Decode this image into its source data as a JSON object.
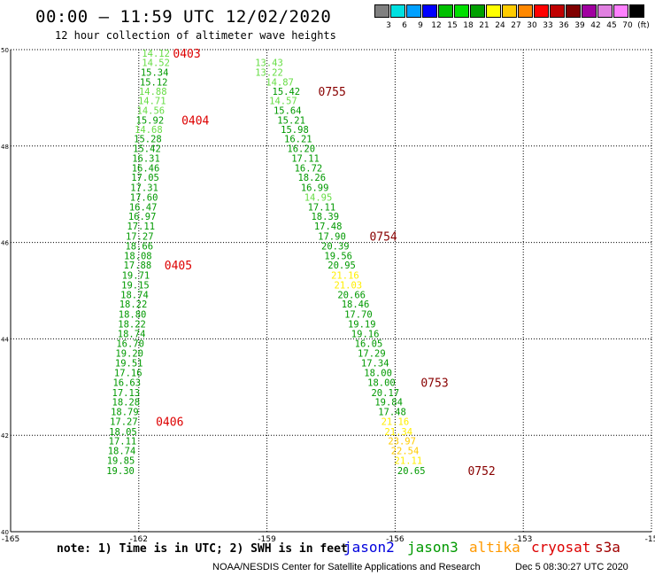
{
  "header": {
    "title": "00:00 — 11:59 UTC 12/02/2020",
    "subtitle": "12 hour collection of altimeter wave heights"
  },
  "legend": {
    "colors": [
      "#808080",
      "#00e0e0",
      "#00a0ff",
      "#0000ff",
      "#00c000",
      "#00e000",
      "#00a000",
      "#ffff00",
      "#ffcc00",
      "#ff8800",
      "#ff0000",
      "#c00000",
      "#800000",
      "#a000a0",
      "#e080e0",
      "#ff80ff",
      "#000000"
    ],
    "labels": [
      "3",
      "6",
      "9",
      "12",
      "15",
      "18",
      "21",
      "24",
      "27",
      "30",
      "33",
      "36",
      "39",
      "42",
      "45",
      "70",
      "(ft)"
    ]
  },
  "footer": {
    "note": "note: 1) Time is in UTC; 2) SWH is in feet",
    "satellites": [
      {
        "name": "jason2",
        "color": "#0000dd"
      },
      {
        "name": "jason3",
        "color": "#009900"
      },
      {
        "name": "altika",
        "color": "#ff9900"
      },
      {
        "name": "cryosat",
        "color": "#dd0000"
      },
      {
        "name": "s3a",
        "color": "#a00000"
      }
    ],
    "credit": "NOAA/NESDIS Center for Satellite Applications and Research",
    "timestamp": "Dec  5 08:30:27 UTC 2020"
  },
  "chart_data": {
    "type": "scatter",
    "xlim": [
      -165,
      -150
    ],
    "ylim": [
      40,
      50
    ],
    "xticks": [
      "-165",
      "-162",
      "-159",
      "-156",
      "-153",
      "-15"
    ],
    "yticks": [
      "40",
      "42",
      "44",
      "46",
      "48",
      "50"
    ],
    "grid": true,
    "tracks": [
      {
        "name": "track-west",
        "points": [
          {
            "lon": -161.6,
            "lat": 49.93,
            "v": "14.12",
            "c": "#66dd44"
          },
          {
            "lon": -161.6,
            "lat": 49.73,
            "v": "14.52",
            "c": "#66dd44"
          },
          {
            "lon": -161.63,
            "lat": 49.53,
            "v": "15.34",
            "c": "#009900"
          },
          {
            "lon": -161.65,
            "lat": 49.33,
            "v": "15.12",
            "c": "#009900"
          },
          {
            "lon": -161.67,
            "lat": 49.14,
            "v": "14.88",
            "c": "#66dd44"
          },
          {
            "lon": -161.69,
            "lat": 48.94,
            "v": "14.71",
            "c": "#66dd44"
          },
          {
            "lon": -161.72,
            "lat": 48.74,
            "v": "14.56",
            "c": "#66dd44"
          },
          {
            "lon": -161.74,
            "lat": 48.54,
            "v": "15.92",
            "c": "#009900"
          },
          {
            "lon": -161.77,
            "lat": 48.35,
            "v": "14.68",
            "c": "#66dd44"
          },
          {
            "lon": -161.79,
            "lat": 48.15,
            "v": "15.28",
            "c": "#009900"
          },
          {
            "lon": -161.81,
            "lat": 47.95,
            "v": "15.42",
            "c": "#009900"
          },
          {
            "lon": -161.83,
            "lat": 47.75,
            "v": "16.31",
            "c": "#009900"
          },
          {
            "lon": -161.84,
            "lat": 47.55,
            "v": "16.46",
            "c": "#009900"
          },
          {
            "lon": -161.85,
            "lat": 47.35,
            "v": "17.05",
            "c": "#009900"
          },
          {
            "lon": -161.87,
            "lat": 47.14,
            "v": "17.31",
            "c": "#009900"
          },
          {
            "lon": -161.88,
            "lat": 46.94,
            "v": "17.60",
            "c": "#009900"
          },
          {
            "lon": -161.9,
            "lat": 46.74,
            "v": "16.47",
            "c": "#009900"
          },
          {
            "lon": -161.92,
            "lat": 46.54,
            "v": "16.97",
            "c": "#009900"
          },
          {
            "lon": -161.95,
            "lat": 46.34,
            "v": "17.11",
            "c": "#009900"
          },
          {
            "lon": -161.98,
            "lat": 46.13,
            "v": "17.27",
            "c": "#009900"
          },
          {
            "lon": -161.99,
            "lat": 45.93,
            "v": "18.66",
            "c": "#009900"
          },
          {
            "lon": -162.02,
            "lat": 45.73,
            "v": "18.08",
            "c": "#009900"
          },
          {
            "lon": -162.03,
            "lat": 45.53,
            "v": "17.88",
            "c": "#009900"
          },
          {
            "lon": -162.07,
            "lat": 45.32,
            "v": "19.71",
            "c": "#009900"
          },
          {
            "lon": -162.08,
            "lat": 45.12,
            "v": "19.15",
            "c": "#009900"
          },
          {
            "lon": -162.1,
            "lat": 44.92,
            "v": "18.74",
            "c": "#009900"
          },
          {
            "lon": -162.13,
            "lat": 44.72,
            "v": "18.22",
            "c": "#009900"
          },
          {
            "lon": -162.15,
            "lat": 44.51,
            "v": "18.80",
            "c": "#009900"
          },
          {
            "lon": -162.16,
            "lat": 44.31,
            "v": "18.22",
            "c": "#009900"
          },
          {
            "lon": -162.17,
            "lat": 44.11,
            "v": "18.74",
            "c": "#009900"
          },
          {
            "lon": -162.2,
            "lat": 43.91,
            "v": "16.70",
            "c": "#009900"
          },
          {
            "lon": -162.22,
            "lat": 43.7,
            "v": "19.20",
            "c": "#009900"
          },
          {
            "lon": -162.23,
            "lat": 43.5,
            "v": "19.51",
            "c": "#009900"
          },
          {
            "lon": -162.25,
            "lat": 43.3,
            "v": "17.16",
            "c": "#009900"
          },
          {
            "lon": -162.28,
            "lat": 43.1,
            "v": "16.63",
            "c": "#009900"
          },
          {
            "lon": -162.3,
            "lat": 42.89,
            "v": "17.13",
            "c": "#009900"
          },
          {
            "lon": -162.3,
            "lat": 42.69,
            "v": "18.28",
            "c": "#009900"
          },
          {
            "lon": -162.33,
            "lat": 42.49,
            "v": "18.79",
            "c": "#009900"
          },
          {
            "lon": -162.35,
            "lat": 42.29,
            "v": "17.27",
            "c": "#009900"
          },
          {
            "lon": -162.37,
            "lat": 42.08,
            "v": "18.05",
            "c": "#009900"
          },
          {
            "lon": -162.38,
            "lat": 41.88,
            "v": "17.11",
            "c": "#009900"
          },
          {
            "lon": -162.4,
            "lat": 41.68,
            "v": "18.74",
            "c": "#009900"
          },
          {
            "lon": -162.42,
            "lat": 41.48,
            "v": "19.85",
            "c": "#009900"
          },
          {
            "lon": -162.43,
            "lat": 41.27,
            "v": "19.30",
            "c": "#009900"
          }
        ]
      },
      {
        "name": "track-east",
        "points": [
          {
            "lon": -158.95,
            "lat": 49.73,
            "v": "13.43",
            "c": "#66dd44"
          },
          {
            "lon": -158.95,
            "lat": 49.53,
            "v": "13.22",
            "c": "#66dd44"
          },
          {
            "lon": -158.7,
            "lat": 49.33,
            "v": "14.87",
            "c": "#66dd44"
          },
          {
            "lon": -158.55,
            "lat": 49.14,
            "v": "15.42",
            "c": "#009900"
          },
          {
            "lon": -158.62,
            "lat": 48.94,
            "v": "14.57",
            "c": "#66dd44"
          },
          {
            "lon": -158.52,
            "lat": 48.74,
            "v": "15.64",
            "c": "#009900"
          },
          {
            "lon": -158.43,
            "lat": 48.54,
            "v": "15.21",
            "c": "#009900"
          },
          {
            "lon": -158.35,
            "lat": 48.35,
            "v": "15.98",
            "c": "#009900"
          },
          {
            "lon": -158.27,
            "lat": 48.15,
            "v": "16.21",
            "c": "#009900"
          },
          {
            "lon": -158.2,
            "lat": 47.95,
            "v": "16.20",
            "c": "#009900"
          },
          {
            "lon": -158.1,
            "lat": 47.75,
            "v": "17.11",
            "c": "#009900"
          },
          {
            "lon": -158.03,
            "lat": 47.55,
            "v": "16.72",
            "c": "#009900"
          },
          {
            "lon": -157.95,
            "lat": 47.35,
            "v": "18.26",
            "c": "#009900"
          },
          {
            "lon": -157.88,
            "lat": 47.14,
            "v": "16.99",
            "c": "#009900"
          },
          {
            "lon": -157.8,
            "lat": 46.94,
            "v": "14.95",
            "c": "#66dd44"
          },
          {
            "lon": -157.72,
            "lat": 46.74,
            "v": "17.11",
            "c": "#009900"
          },
          {
            "lon": -157.64,
            "lat": 46.54,
            "v": "18.39",
            "c": "#009900"
          },
          {
            "lon": -157.57,
            "lat": 46.34,
            "v": "17.48",
            "c": "#009900"
          },
          {
            "lon": -157.48,
            "lat": 46.13,
            "v": "17.90",
            "c": "#009900"
          },
          {
            "lon": -157.4,
            "lat": 45.93,
            "v": "20.39",
            "c": "#009900"
          },
          {
            "lon": -157.33,
            "lat": 45.73,
            "v": "19.56",
            "c": "#009900"
          },
          {
            "lon": -157.25,
            "lat": 45.53,
            "v": "20.95",
            "c": "#009900"
          },
          {
            "lon": -157.17,
            "lat": 45.32,
            "v": "21.16",
            "c": "#ffee00"
          },
          {
            "lon": -157.1,
            "lat": 45.12,
            "v": "21.03",
            "c": "#ffee00"
          },
          {
            "lon": -157.02,
            "lat": 44.92,
            "v": "20.66",
            "c": "#009900"
          },
          {
            "lon": -156.93,
            "lat": 44.72,
            "v": "18.46",
            "c": "#009900"
          },
          {
            "lon": -156.86,
            "lat": 44.51,
            "v": "17.70",
            "c": "#009900"
          },
          {
            "lon": -156.78,
            "lat": 44.31,
            "v": "19.19",
            "c": "#009900"
          },
          {
            "lon": -156.7,
            "lat": 44.11,
            "v": "19.16",
            "c": "#009900"
          },
          {
            "lon": -156.62,
            "lat": 43.91,
            "v": "16.05",
            "c": "#009900"
          },
          {
            "lon": -156.55,
            "lat": 43.7,
            "v": "17.29",
            "c": "#009900"
          },
          {
            "lon": -156.47,
            "lat": 43.5,
            "v": "17.34",
            "c": "#009900"
          },
          {
            "lon": -156.4,
            "lat": 43.3,
            "v": "18.00",
            "c": "#009900"
          },
          {
            "lon": -156.32,
            "lat": 43.1,
            "v": "18.00",
            "c": "#009900"
          },
          {
            "lon": -156.23,
            "lat": 42.89,
            "v": "20.17",
            "c": "#009900"
          },
          {
            "lon": -156.15,
            "lat": 42.69,
            "v": "19.84",
            "c": "#009900"
          },
          {
            "lon": -156.07,
            "lat": 42.49,
            "v": "17.48",
            "c": "#009900"
          },
          {
            "lon": -156.0,
            "lat": 42.29,
            "v": "21.16",
            "c": "#ffee00"
          },
          {
            "lon": -155.92,
            "lat": 42.08,
            "v": "21.34",
            "c": "#ffee00"
          },
          {
            "lon": -155.84,
            "lat": 41.88,
            "v": "23.97",
            "c": "#ffcc00"
          },
          {
            "lon": -155.77,
            "lat": 41.68,
            "v": "22.54",
            "c": "#ffcc00"
          },
          {
            "lon": -155.69,
            "lat": 41.48,
            "v": "21.11",
            "c": "#ffee00"
          },
          {
            "lon": -155.62,
            "lat": 41.27,
            "v": "20.65",
            "c": "#009900"
          }
        ]
      }
    ],
    "time_labels": [
      {
        "text": "0403",
        "lon": -161.2,
        "lat": 49.93,
        "c": "#dd0000"
      },
      {
        "text": "0404",
        "lon": -161.0,
        "lat": 48.54,
        "c": "#dd0000"
      },
      {
        "text": "0405",
        "lon": -161.4,
        "lat": 45.53,
        "c": "#dd0000"
      },
      {
        "text": "0406",
        "lon": -161.6,
        "lat": 42.29,
        "c": "#dd0000"
      },
      {
        "text": "0755",
        "lon": -157.8,
        "lat": 49.14,
        "c": "#880000"
      },
      {
        "text": "0754",
        "lon": -156.6,
        "lat": 46.13,
        "c": "#880000"
      },
      {
        "text": "0753",
        "lon": -155.4,
        "lat": 43.1,
        "c": "#880000"
      },
      {
        "text": "0752",
        "lon": -154.3,
        "lat": 41.27,
        "c": "#880000"
      }
    ]
  }
}
